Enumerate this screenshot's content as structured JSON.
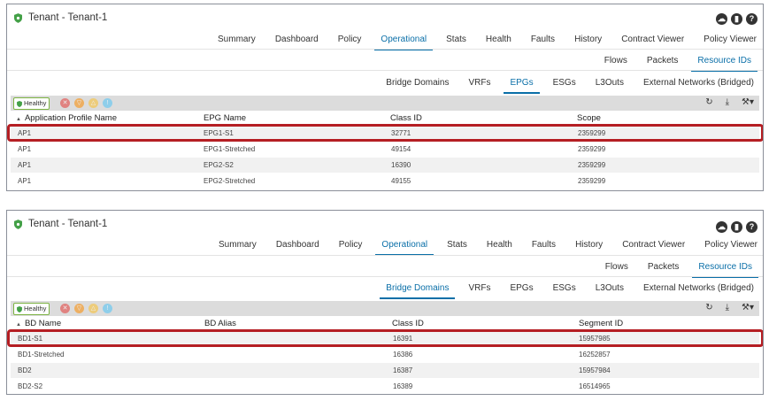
{
  "colors": {
    "accent": "#0a6fa8",
    "highlight": "#b51e23",
    "healthy": "#7cb342",
    "critical": "#e53935",
    "major": "#fb8c00",
    "minor": "#fbc02d",
    "warning": "#4fc3f7"
  },
  "panel1": {
    "title": "Tenant - Tenant-1",
    "main_tabs": [
      "Summary",
      "Dashboard",
      "Policy",
      "Operational",
      "Stats",
      "Health",
      "Faults",
      "History",
      "Contract Viewer",
      "Policy Viewer"
    ],
    "main_active": "Operational",
    "sub_tabs": [
      "Flows",
      "Packets",
      "Resource IDs"
    ],
    "sub_active": "Resource IDs",
    "third_tabs": [
      "Bridge Domains",
      "VRFs",
      "EPGs",
      "ESGs",
      "L3Outs",
      "External Networks (Bridged)"
    ],
    "third_active": "EPGs",
    "healthy_label": "Healthy",
    "columns": [
      "Application Profile Name",
      "EPG Name",
      "Class ID",
      "Scope"
    ],
    "rows": [
      [
        "AP1",
        "EPG1-S1",
        "32771",
        "2359299"
      ],
      [
        "AP1",
        "EPG1-Stretched",
        "49154",
        "2359299"
      ],
      [
        "AP1",
        "EPG2-S2",
        "16390",
        "2359299"
      ],
      [
        "AP1",
        "EPG2-Stretched",
        "49155",
        "2359299"
      ]
    ]
  },
  "panel2": {
    "title": "Tenant - Tenant-1",
    "main_tabs": [
      "Summary",
      "Dashboard",
      "Policy",
      "Operational",
      "Stats",
      "Health",
      "Faults",
      "History",
      "Contract Viewer",
      "Policy Viewer"
    ],
    "main_active": "Operational",
    "sub_tabs": [
      "Flows",
      "Packets",
      "Resource IDs"
    ],
    "sub_active": "Resource IDs",
    "third_tabs": [
      "Bridge Domains",
      "VRFs",
      "EPGs",
      "ESGs",
      "L3Outs",
      "External Networks (Bridged)"
    ],
    "third_active": "Bridge Domains",
    "healthy_label": "Healthy",
    "columns": [
      "BD Name",
      "BD Alias",
      "Class ID",
      "Segment ID"
    ],
    "rows": [
      [
        "BD1-S1",
        "",
        "16391",
        "15957985"
      ],
      [
        "BD1-Stretched",
        "",
        "16386",
        "16252857"
      ],
      [
        "BD2",
        "",
        "16387",
        "15957984"
      ],
      [
        "BD2-S2",
        "",
        "16389",
        "16514965"
      ]
    ]
  }
}
